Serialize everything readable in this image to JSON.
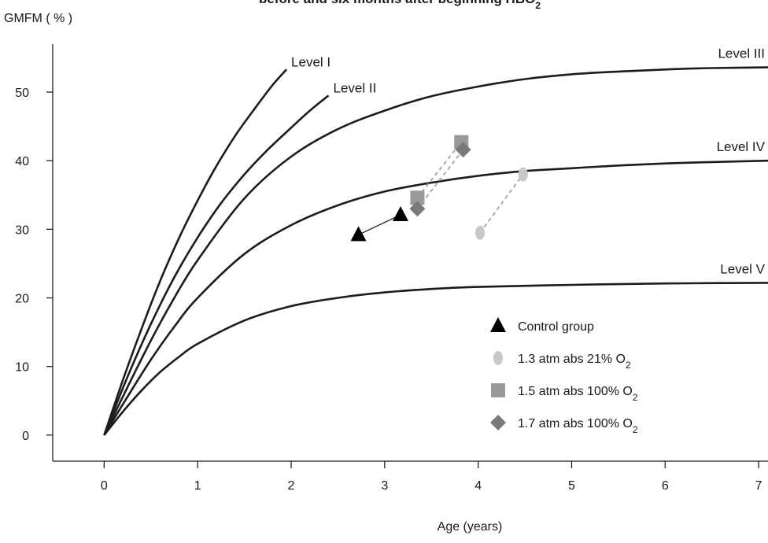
{
  "chart_data": {
    "type": "line",
    "title_partial": "before and six months after beginning HBO",
    "title_subscript": "2",
    "ylabel": "GMFM ( % )",
    "xlabel": "Age  (years)",
    "xlim": [
      -0.55,
      7.1
    ],
    "ylim": [
      -3.8,
      57
    ],
    "x_ticks": [
      0,
      1,
      2,
      3,
      4,
      5,
      6,
      7
    ],
    "y_ticks": [
      0,
      10,
      20,
      30,
      40,
      50
    ],
    "curves": [
      {
        "label": "Level I",
        "points": [
          [
            0,
            0
          ],
          [
            0.2,
            8
          ],
          [
            0.4,
            15.5
          ],
          [
            0.6,
            22.5
          ],
          [
            0.8,
            28.7
          ],
          [
            1.0,
            34.2
          ],
          [
            1.2,
            39.2
          ],
          [
            1.4,
            43.6
          ],
          [
            1.6,
            47.4
          ],
          [
            1.8,
            51
          ],
          [
            1.95,
            53.3
          ]
        ]
      },
      {
        "label": "Level II",
        "points": [
          [
            0,
            0
          ],
          [
            0.25,
            8.5
          ],
          [
            0.5,
            16.2
          ],
          [
            0.75,
            23
          ],
          [
            1.0,
            28.8
          ],
          [
            1.25,
            33.8
          ],
          [
            1.5,
            38
          ],
          [
            1.75,
            41.6
          ],
          [
            2.0,
            44.8
          ],
          [
            2.2,
            47.3
          ],
          [
            2.4,
            49.5
          ]
        ]
      },
      {
        "label": "Level III",
        "points": [
          [
            0,
            0
          ],
          [
            0.25,
            7
          ],
          [
            0.5,
            13.8
          ],
          [
            0.75,
            20
          ],
          [
            1.0,
            25.5
          ],
          [
            1.5,
            34.5
          ],
          [
            2.0,
            40.6
          ],
          [
            2.5,
            44.6
          ],
          [
            3.0,
            47.3
          ],
          [
            3.5,
            49.4
          ],
          [
            4.0,
            50.8
          ],
          [
            4.5,
            51.9
          ],
          [
            5.0,
            52.6
          ],
          [
            5.5,
            53
          ],
          [
            6.0,
            53.3
          ],
          [
            6.5,
            53.5
          ],
          [
            7.1,
            53.6
          ]
        ]
      },
      {
        "label": "Level IV",
        "points": [
          [
            0,
            0
          ],
          [
            0.25,
            5.6
          ],
          [
            0.5,
            11
          ],
          [
            0.75,
            15.8
          ],
          [
            1.0,
            20
          ],
          [
            1.5,
            26.4
          ],
          [
            2.0,
            30.6
          ],
          [
            2.5,
            33.5
          ],
          [
            3.0,
            35.5
          ],
          [
            3.5,
            36.8
          ],
          [
            4.0,
            37.8
          ],
          [
            4.5,
            38.5
          ],
          [
            5.0,
            38.9
          ],
          [
            5.5,
            39.3
          ],
          [
            6.0,
            39.6
          ],
          [
            6.5,
            39.8
          ],
          [
            7.1,
            40
          ]
        ]
      },
      {
        "label": "Level V",
        "points": [
          [
            0,
            0
          ],
          [
            0.2,
            3.4
          ],
          [
            0.4,
            6.5
          ],
          [
            0.6,
            9.2
          ],
          [
            0.8,
            11.4
          ],
          [
            1.0,
            13.3
          ],
          [
            1.5,
            16.7
          ],
          [
            2.0,
            18.8
          ],
          [
            2.5,
            20
          ],
          [
            3.0,
            20.8
          ],
          [
            3.5,
            21.3
          ],
          [
            4.0,
            21.6
          ],
          [
            5.0,
            21.9
          ],
          [
            6.0,
            22.1
          ],
          [
            7.1,
            22.2
          ]
        ]
      }
    ],
    "series": [
      {
        "name": "Control group",
        "marker": "triangle",
        "color": "#000000",
        "line": "solid",
        "points": [
          [
            2.72,
            29.2
          ],
          [
            3.17,
            32.1
          ]
        ]
      },
      {
        "name": "1.3 atm abs 21% O",
        "name_subscript": "2",
        "marker": "ellipse",
        "color": "#c8c8c8",
        "line": "dashed",
        "points": [
          [
            4.02,
            29.5
          ],
          [
            4.48,
            38.0
          ]
        ]
      },
      {
        "name": "1.5 atm abs 100% O",
        "name_subscript": "2",
        "marker": "square",
        "color": "#999999",
        "line": "dashed",
        "points": [
          [
            3.35,
            34.6
          ],
          [
            3.82,
            42.7
          ]
        ]
      },
      {
        "name": "1.7 atm abs 100% O",
        "name_subscript": "2",
        "marker": "diamond",
        "color": "#7a7a7a",
        "line": "dashed",
        "points": [
          [
            3.35,
            33.0
          ],
          [
            3.84,
            41.6
          ]
        ]
      }
    ],
    "legend_position": "lower-right",
    "grid": false
  }
}
